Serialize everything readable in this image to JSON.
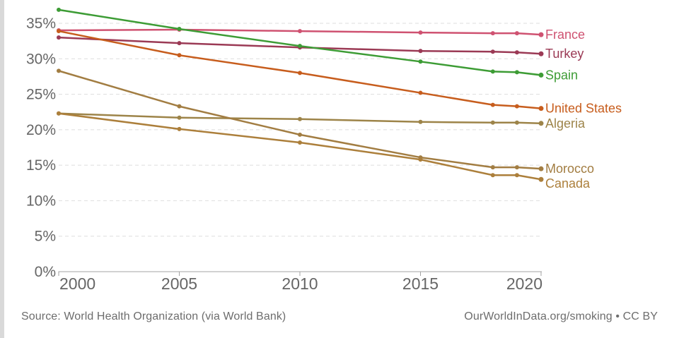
{
  "chart_data": {
    "type": "line",
    "x": [
      2000,
      2005,
      2010,
      2015,
      2018,
      2019,
      2020
    ],
    "series": [
      {
        "name": "France",
        "color": "#cf5271",
        "values": [
          34.0,
          34.1,
          33.9,
          33.7,
          33.6,
          33.6,
          33.4
        ]
      },
      {
        "name": "Turkey",
        "color": "#9b3a55",
        "values": [
          33.0,
          32.2,
          31.6,
          31.1,
          31.0,
          30.9,
          30.7
        ]
      },
      {
        "name": "Spain",
        "color": "#3d9c35",
        "values": [
          36.9,
          34.2,
          31.8,
          29.6,
          28.2,
          28.1,
          27.7
        ]
      },
      {
        "name": "United States",
        "color": "#c75d1d",
        "values": [
          33.9,
          30.5,
          28.0,
          25.2,
          23.5,
          23.3,
          23.0
        ]
      },
      {
        "name": "Algeria",
        "color": "#9d8449",
        "values": [
          22.3,
          21.7,
          21.5,
          21.1,
          21.0,
          21.0,
          20.9
        ]
      },
      {
        "name": "Morocco",
        "color": "#a27d42",
        "values": [
          28.3,
          23.3,
          19.3,
          16.1,
          14.7,
          14.7,
          14.5
        ]
      },
      {
        "name": "Canada",
        "color": "#ac7f3b",
        "values": [
          22.3,
          20.1,
          18.2,
          15.8,
          13.6,
          13.6,
          13.0
        ]
      }
    ],
    "x_axis": {
      "ticks": [
        {
          "value": 2000,
          "label": "2000"
        },
        {
          "value": 2005,
          "label": "2005"
        },
        {
          "value": 2010,
          "label": "2010"
        },
        {
          "value": 2015,
          "label": "2015"
        },
        {
          "value": 2020,
          "label": "2020"
        }
      ],
      "range": [
        2000,
        2020
      ]
    },
    "y_axis": {
      "min": 0,
      "max": 35,
      "ticks": [
        {
          "value": 0,
          "label": "0%"
        },
        {
          "value": 5,
          "label": "5%"
        },
        {
          "value": 10,
          "label": "10%"
        },
        {
          "value": 15,
          "label": "15%"
        },
        {
          "value": 20,
          "label": "20%"
        },
        {
          "value": 25,
          "label": "25%"
        },
        {
          "value": 30,
          "label": "30%"
        },
        {
          "value": 35,
          "label": "35%"
        }
      ]
    },
    "grid": "horizontal-dashed",
    "legend_position": "right-end-labels",
    "title": "",
    "xlabel": "",
    "ylabel": ""
  },
  "footer": {
    "source": "Source: World Health Organization (via World Bank)",
    "attribution": "OurWorldInData.org/smoking • CC BY"
  },
  "colors": {
    "background": "#ffffff",
    "grid": "#dedede",
    "axis": "#a3a3a3",
    "tick_text": "#666666",
    "footer_text": "#6d6d6d",
    "left_strip": "#d9d9d9"
  }
}
